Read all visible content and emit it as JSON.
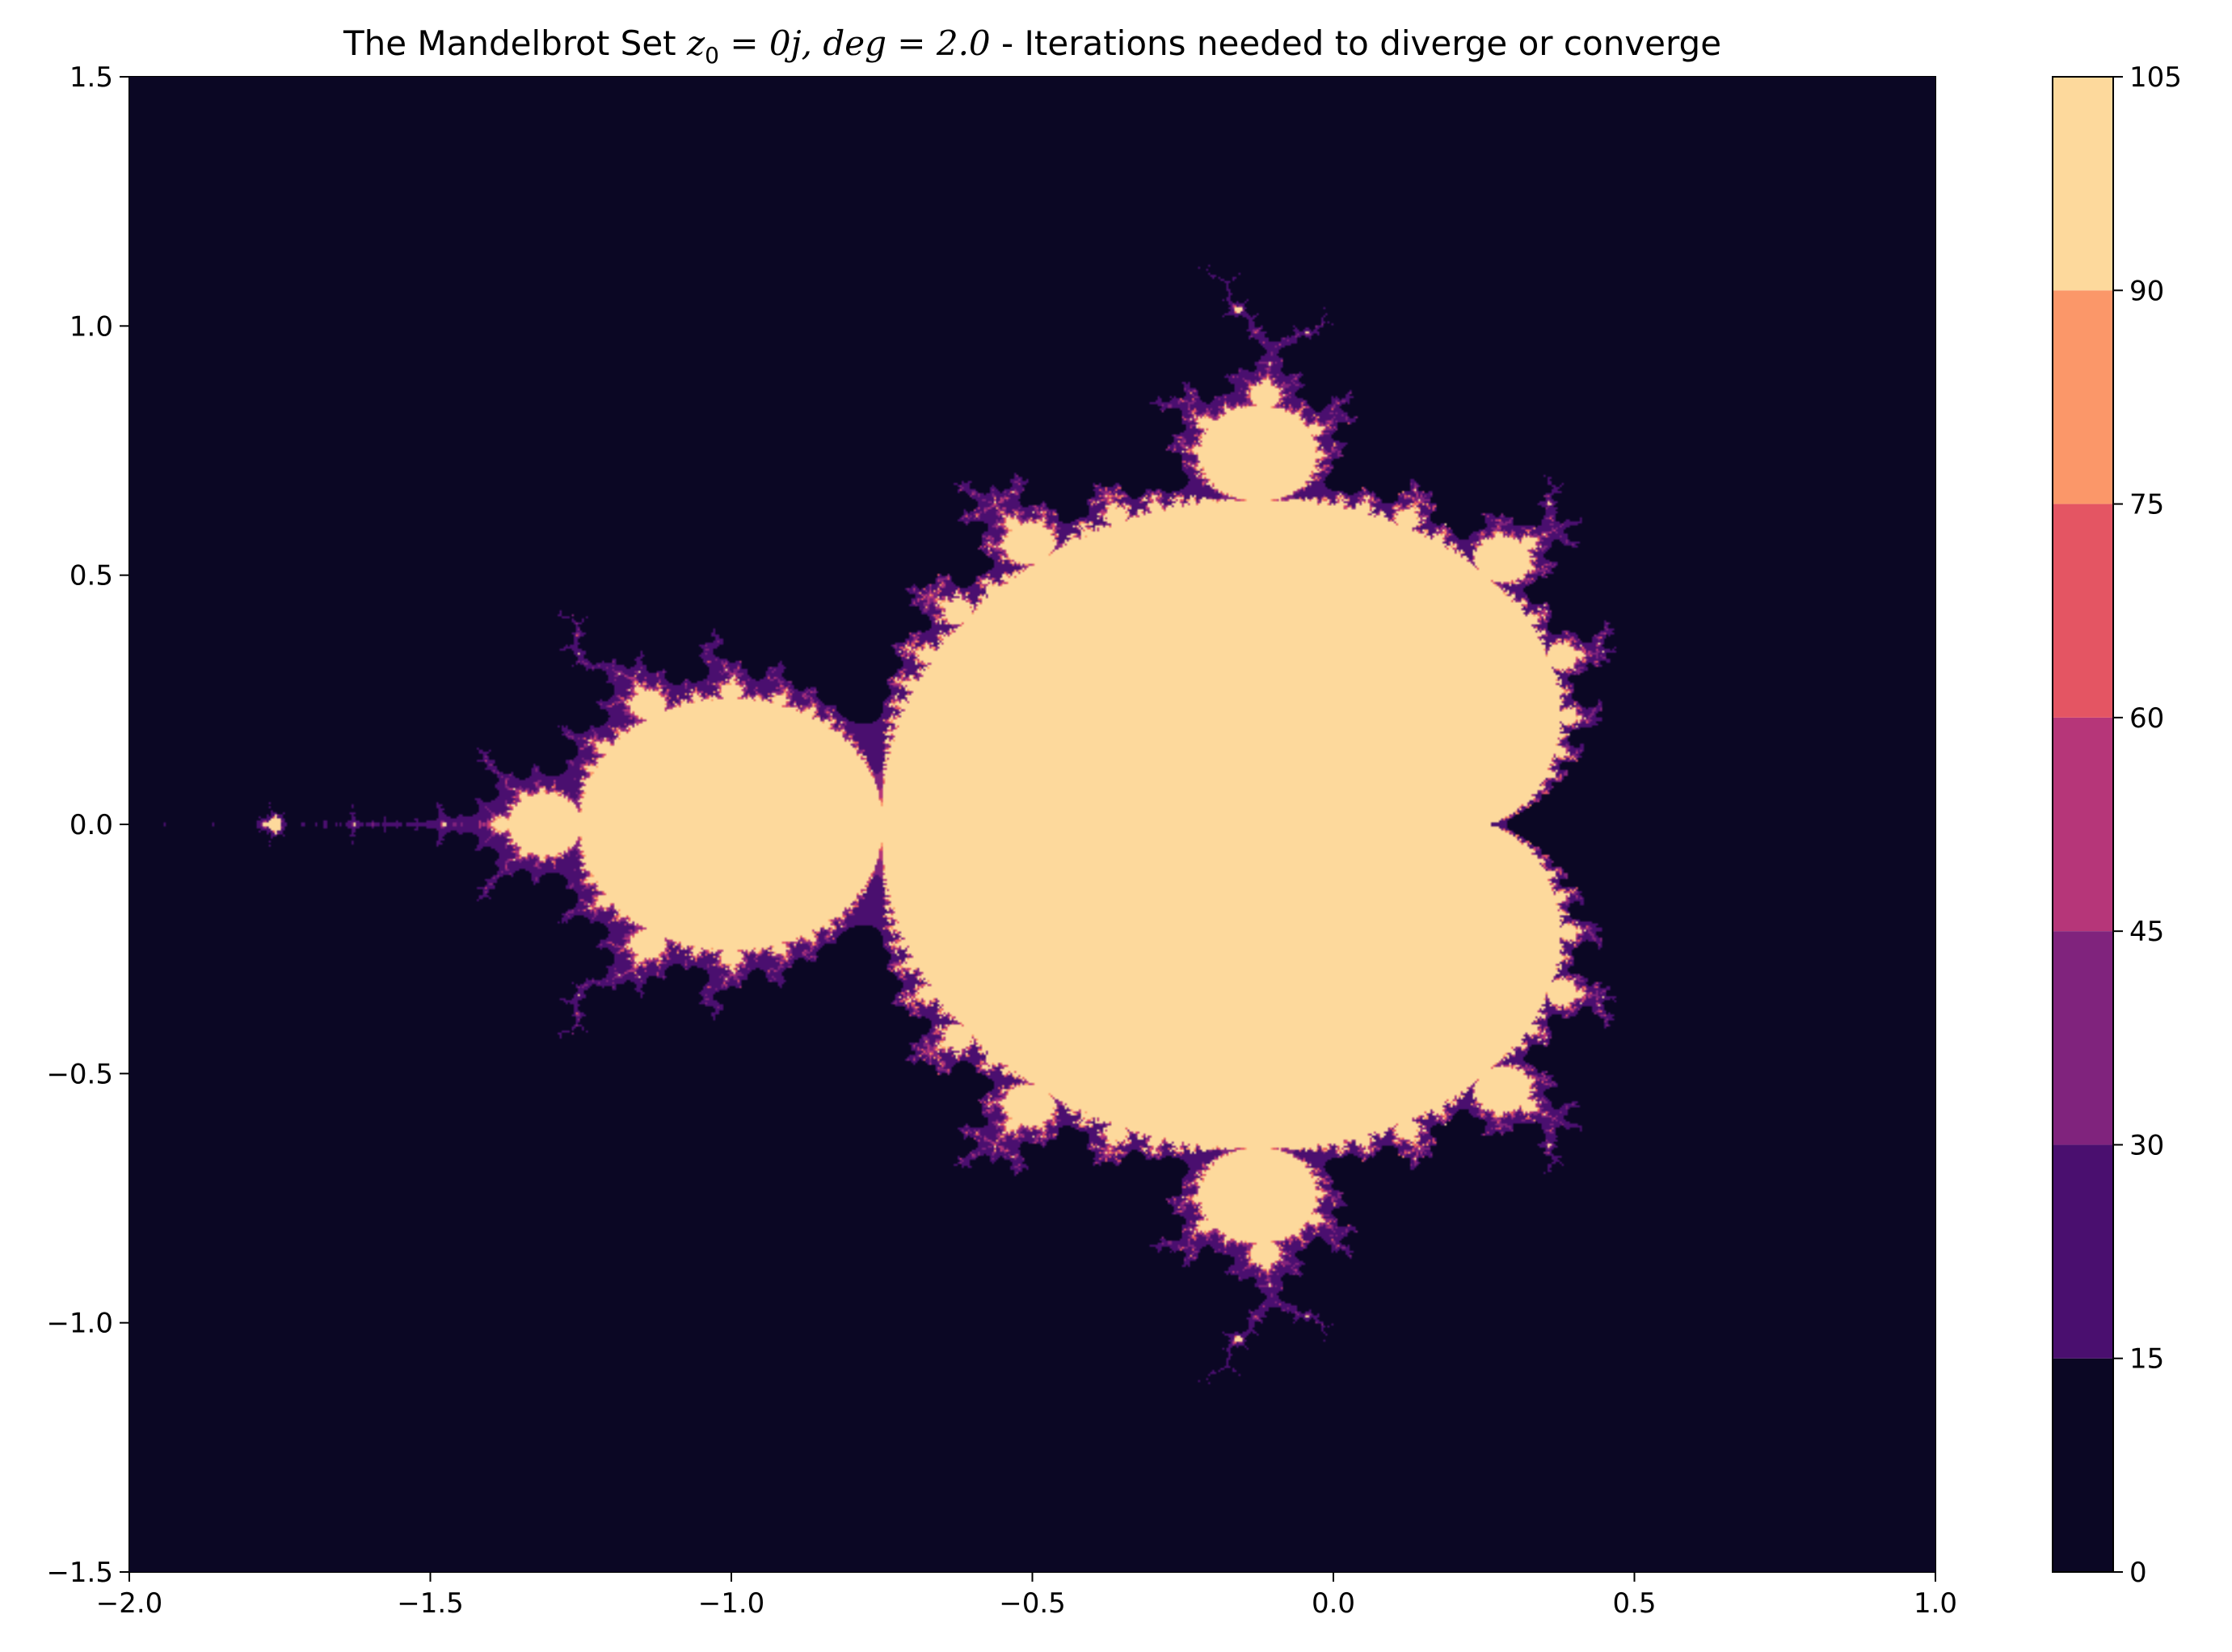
{
  "chart_data": {
    "type": "heatmap",
    "title": {
      "prefix": "The Mandelbrot Set ",
      "math_z": "z",
      "math_sub": "0",
      "math_rest": " = 0j, deg = 2.0",
      "suffix": " - Iterations needed to diverge or converge"
    },
    "xlabel": "",
    "ylabel": "",
    "xlim": [
      -2.0,
      1.0
    ],
    "ylim": [
      -1.5,
      1.5
    ],
    "x_ticks": [
      -2.0,
      -1.5,
      -1.0,
      -0.5,
      0.0,
      0.5,
      1.0
    ],
    "x_tick_labels": [
      "−2.0",
      "−1.5",
      "−1.0",
      "−0.5",
      "0.0",
      "0.5",
      "1.0"
    ],
    "y_ticks": [
      -1.5,
      -1.0,
      -0.5,
      0.0,
      0.5,
      1.0,
      1.5
    ],
    "y_tick_labels": [
      "−1.5",
      "−1.0",
      "−0.5",
      "0.0",
      "0.5",
      "1.0",
      "1.5"
    ],
    "grid": false,
    "colormap": "magma",
    "fractal": {
      "z0": 0,
      "degree": 2.0,
      "max_iterations": 105
    },
    "colorbar": {
      "location": "right",
      "levels": [
        0,
        15,
        30,
        45,
        60,
        75,
        90,
        105
      ],
      "tick_labels": [
        "0",
        "15",
        "30",
        "45",
        "60",
        "75",
        "90",
        "105"
      ],
      "colors": [
        "#0b0724",
        "#4a0f6f",
        "#80237d",
        "#b63679",
        "#e45563",
        "#fb9769",
        "#fdd99c"
      ]
    }
  }
}
